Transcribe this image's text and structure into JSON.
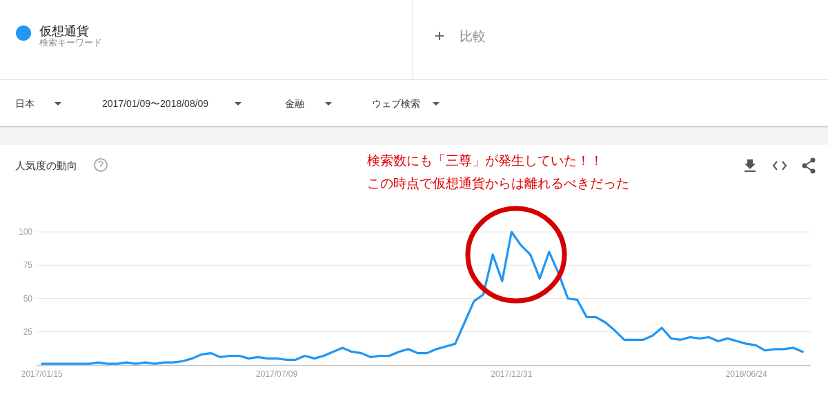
{
  "chart_data": {
    "type": "line",
    "title": "人気度の動向",
    "x": [
      "2017-01-15",
      "2017-01-22",
      "2017-01-29",
      "2017-02-05",
      "2017-02-12",
      "2017-02-19",
      "2017-02-26",
      "2017-03-05",
      "2017-03-12",
      "2017-03-19",
      "2017-03-26",
      "2017-04-02",
      "2017-04-09",
      "2017-04-16",
      "2017-04-23",
      "2017-04-30",
      "2017-05-07",
      "2017-05-14",
      "2017-05-21",
      "2017-05-28",
      "2017-06-04",
      "2017-06-11",
      "2017-06-18",
      "2017-06-25",
      "2017-07-02",
      "2017-07-09",
      "2017-07-16",
      "2017-07-23",
      "2017-07-30",
      "2017-08-06",
      "2017-08-13",
      "2017-08-20",
      "2017-08-27",
      "2017-09-03",
      "2017-09-10",
      "2017-09-17",
      "2017-09-24",
      "2017-10-01",
      "2017-10-08",
      "2017-10-15",
      "2017-10-22",
      "2017-10-29",
      "2017-11-05",
      "2017-11-12",
      "2017-11-19",
      "2017-11-26",
      "2017-12-03",
      "2017-12-10",
      "2017-12-17",
      "2017-12-24",
      "2017-12-31",
      "2018-01-07",
      "2018-01-14",
      "2018-01-21",
      "2018-01-28",
      "2018-02-04",
      "2018-02-11",
      "2018-02-18",
      "2018-02-25",
      "2018-03-04",
      "2018-03-11",
      "2018-03-18",
      "2018-03-25",
      "2018-04-01",
      "2018-04-08",
      "2018-04-15",
      "2018-04-22",
      "2018-04-29",
      "2018-05-06",
      "2018-05-13",
      "2018-05-20",
      "2018-05-27",
      "2018-06-03",
      "2018-06-10",
      "2018-06-17",
      "2018-06-24",
      "2018-07-01",
      "2018-07-08",
      "2018-07-15",
      "2018-07-22",
      "2018-07-29",
      "2018-08-05"
    ],
    "series": [
      {
        "name": "仮想通貨",
        "color": "#2196f3",
        "values": [
          1,
          1,
          1,
          1,
          1,
          1,
          2,
          1,
          1,
          2,
          1,
          2,
          1,
          2,
          2,
          3,
          5,
          8,
          9,
          6,
          7,
          7,
          5,
          6,
          5,
          5,
          4,
          4,
          7,
          5,
          7,
          10,
          13,
          10,
          9,
          6,
          7,
          7,
          10,
          12,
          9,
          9,
          12,
          14,
          16,
          32,
          48,
          53,
          83,
          63,
          100,
          90,
          83,
          65,
          85,
          69,
          50,
          49,
          36,
          36,
          32,
          26,
          19,
          19,
          19,
          22,
          28,
          20,
          19,
          21,
          20,
          21,
          18,
          20,
          18,
          16,
          15,
          11,
          12,
          12,
          13,
          10
        ]
      }
    ],
    "xlim": [
      "2017-01-11",
      "2018-08-11"
    ],
    "xticks": [
      {
        "value": "2017-01-15",
        "label": "2017/01/15"
      },
      {
        "value": "2017-07-09",
        "label": "2017/07/09"
      },
      {
        "value": "2017-12-31",
        "label": "2017/12/31"
      },
      {
        "value": "2018-06-24",
        "label": "2018/06/24"
      }
    ],
    "ylim": [
      0,
      100
    ],
    "yticks": [
      25,
      50,
      75,
      100
    ],
    "grid": "y",
    "legend": "top left",
    "annotations": [
      "検索キーワード",
      "比較",
      "日本",
      "2017/01/09〜2018/08/09",
      "金融",
      "ウェブ検索",
      "検索数にも「三尊」が発生していた！！",
      "この時点で仮想通貨からは離れるべきだった"
    ]
  }
}
